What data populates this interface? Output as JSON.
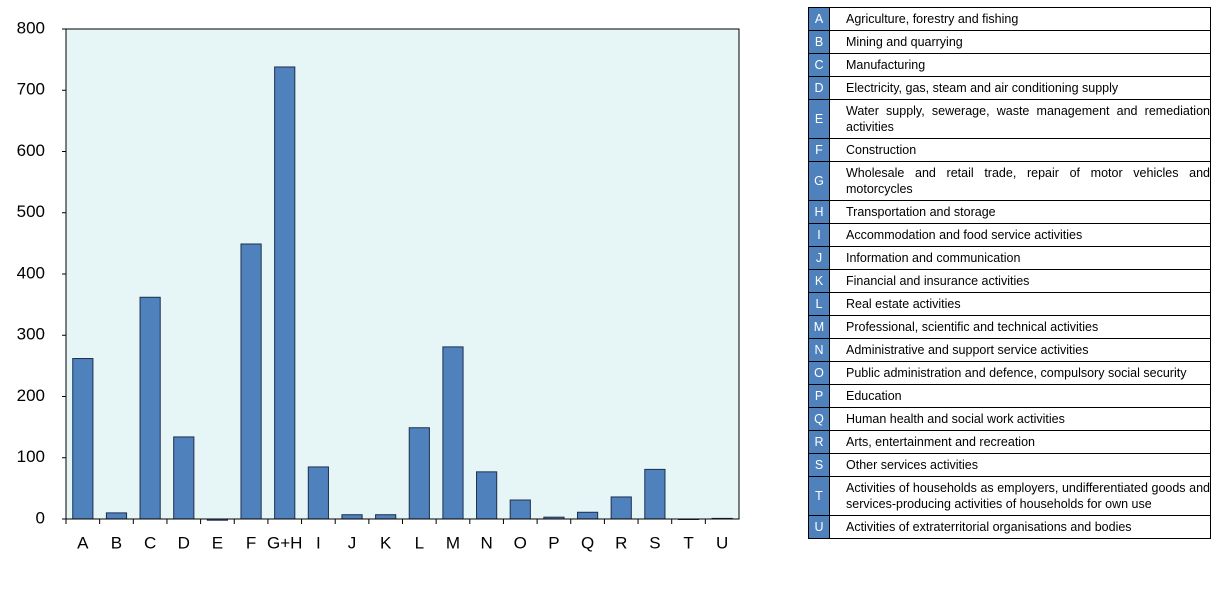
{
  "chart_data": {
    "type": "bar",
    "categories": [
      "A",
      "B",
      "C",
      "D",
      "E",
      "F",
      "G+H",
      "I",
      "J",
      "K",
      "L",
      "M",
      "N",
      "O",
      "P",
      "Q",
      "R",
      "S",
      "T",
      "U"
    ],
    "values": [
      262,
      10,
      362,
      134,
      -2,
      449,
      738,
      85,
      7,
      7,
      149,
      281,
      77,
      31,
      3,
      11,
      36,
      81,
      0,
      1
    ],
    "color": "#4f81bd",
    "background": "#e6f6f6",
    "ylim": [
      0,
      800
    ],
    "yticks": [
      0,
      100,
      200,
      300,
      400,
      500,
      600,
      700,
      800
    ],
    "grid": false
  },
  "table": {
    "rows": [
      [
        "A",
        "Agriculture, forestry and fishing"
      ],
      [
        "B",
        "Mining and quarrying"
      ],
      [
        "C",
        "Manufacturing"
      ],
      [
        "D",
        "Electricity, gas, steam and air conditioning supply"
      ],
      [
        "E",
        "Water supply, sewerage, waste management and remediation activities"
      ],
      [
        "F",
        "Construction"
      ],
      [
        "G",
        "Wholesale and retail trade, repair of motor vehicles and motorcycles"
      ],
      [
        "H",
        "Transportation and storage"
      ],
      [
        "I",
        "Accommodation and food service activities"
      ],
      [
        "J",
        "Information and communication"
      ],
      [
        "K",
        "Financial and insurance activities"
      ],
      [
        "L",
        "Real estate activities"
      ],
      [
        "M",
        "Professional, scientific and technical activities"
      ],
      [
        "N",
        "Administrative and support service activities"
      ],
      [
        "O",
        "Public administration and defence, compulsory social security"
      ],
      [
        "P",
        "Education"
      ],
      [
        "Q",
        "Human health and social work activities"
      ],
      [
        "R",
        "Arts, entertainment and recreation"
      ],
      [
        "S",
        "Other services activities"
      ],
      [
        "T",
        "Activities of households as employers, undifferentiated goods and services-producing activities of households for own use"
      ],
      [
        "U",
        "Activities of extraterritorial organisations and bodies"
      ]
    ]
  }
}
